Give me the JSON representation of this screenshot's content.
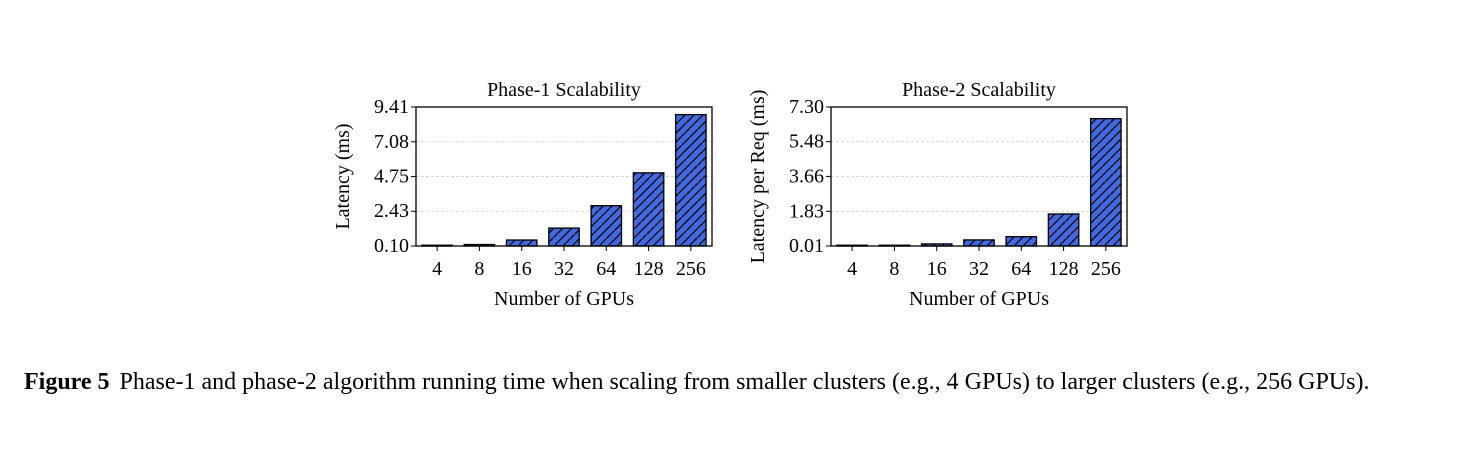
{
  "chart_data": [
    {
      "type": "bar",
      "title": "Phase-1 Scalability",
      "xlabel": "Number of GPUs",
      "ylabel": "Latency (ms)",
      "categories": [
        "4",
        "8",
        "16",
        "32",
        "64",
        "128",
        "256"
      ],
      "values": [
        0.12,
        0.2,
        0.5,
        1.3,
        2.8,
        5.0,
        8.9
      ],
      "yticks": [
        "0.10",
        "2.43",
        "4.75",
        "7.08",
        "9.41"
      ],
      "ylim": [
        0.1,
        9.41
      ],
      "grid": true,
      "bar_color": "#4169E1",
      "hatch": "diagonal"
    },
    {
      "type": "bar",
      "title": "Phase-2 Scalability",
      "xlabel": "Number of GPUs",
      "ylabel": "Latency per Req (ms)",
      "categories": [
        "4",
        "8",
        "16",
        "32",
        "64",
        "128",
        "256"
      ],
      "values": [
        0.03,
        0.05,
        0.12,
        0.33,
        0.5,
        1.69,
        6.69
      ],
      "yticks": [
        "0.01",
        "1.83",
        "3.66",
        "5.48",
        "7.30"
      ],
      "ylim": [
        0.01,
        7.3
      ],
      "grid": true,
      "bar_color": "#4169E1",
      "hatch": "diagonal"
    }
  ],
  "caption": {
    "label": "Figure 5",
    "text": "Phase-1 and phase-2 algorithm running time when scaling from smaller clusters (e.g., 4 GPUs) to larger clusters (e.g., 256 GPUs)."
  }
}
